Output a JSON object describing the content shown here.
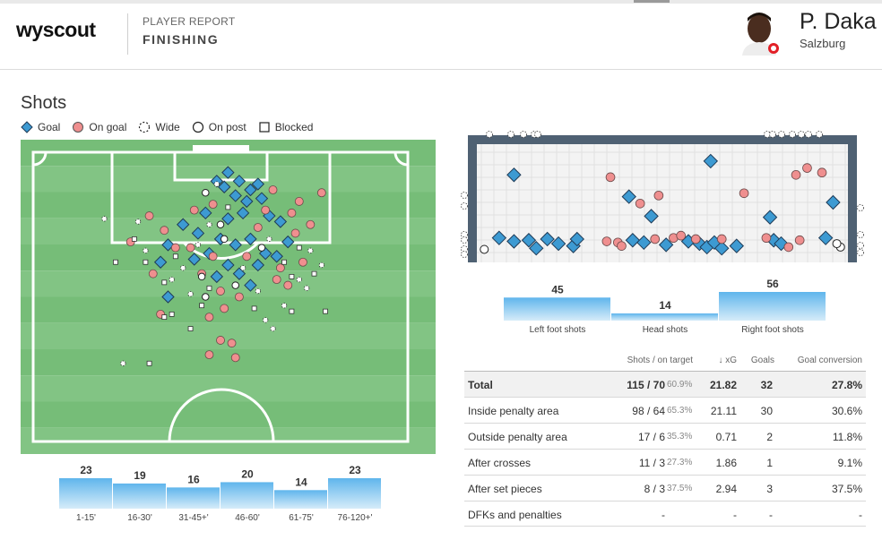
{
  "header": {
    "logo": "wyscout",
    "kicker": "PLAYER REPORT",
    "title": "FINISHING",
    "player_name": "P. Daka",
    "team": "Salzburg"
  },
  "shots": {
    "title": "Shots",
    "legend": [
      {
        "key": "goal",
        "label": "Goal"
      },
      {
        "key": "on_goal",
        "label": "On goal"
      },
      {
        "key": "wide",
        "label": "Wide"
      },
      {
        "key": "on_post",
        "label": "On post"
      },
      {
        "key": "blocked",
        "label": "Blocked"
      }
    ]
  },
  "colors": {
    "pitch_dark": "#76bd78",
    "pitch_light": "#82c484",
    "goal_marker": "#3d9ad2",
    "on_goal_marker": "#ef8f8f",
    "marker_stroke": "#1f3b57",
    "goal_frame": "#4f6173",
    "bar_top": "#5fb5ec",
    "bar_bottom": "#d6ecf9"
  },
  "chart_data": [
    {
      "type": "bar",
      "name": "shots_by_period",
      "categories": [
        "1-15'",
        "16-30'",
        "31-45+'",
        "46-60'",
        "61-75'",
        "76-120+'"
      ],
      "values": [
        23,
        19,
        16,
        20,
        14,
        23
      ]
    },
    {
      "type": "bar",
      "name": "shots_by_body_part",
      "categories": [
        "Left foot shots",
        "Head shots",
        "Right foot shots"
      ],
      "values": [
        45,
        14,
        56
      ]
    },
    {
      "type": "table",
      "name": "finishing_table",
      "columns": [
        "",
        "Shots / on target",
        "↓ xG",
        "Goals",
        "Goal conversion"
      ],
      "rows": [
        {
          "label": "Total",
          "shots": "115 / 70",
          "pct": "60.9%",
          "xg": "21.82",
          "goals": "32",
          "conv": "27.8%"
        },
        {
          "label": "Inside penalty area",
          "shots": "98 / 64",
          "pct": "65.3%",
          "xg": "21.11",
          "goals": "30",
          "conv": "30.6%"
        },
        {
          "label": "Outside penalty area",
          "shots": "17 / 6",
          "pct": "35.3%",
          "xg": "0.71",
          "goals": "2",
          "conv": "11.8%"
        },
        {
          "label": "After crosses",
          "shots": "11 / 3",
          "pct": "27.3%",
          "xg": "1.86",
          "goals": "1",
          "conv": "9.1%"
        },
        {
          "label": "After set pieces",
          "shots": "8 / 3",
          "pct": "37.5%",
          "xg": "2.94",
          "goals": "3",
          "conv": "37.5%"
        },
        {
          "label": "DFKs and penalties",
          "shots": "-",
          "pct": "",
          "xg": "-",
          "goals": "-",
          "conv": "-"
        }
      ]
    },
    {
      "type": "scatter",
      "name": "shot_locations_pitch",
      "x_range": [
        0,
        100
      ],
      "y_range": [
        0,
        100
      ],
      "points": [
        {
          "x": 52,
          "y": 7,
          "r": "goal"
        },
        {
          "x": 55,
          "y": 10,
          "r": "goal"
        },
        {
          "x": 58,
          "y": 13,
          "r": "goal"
        },
        {
          "x": 51,
          "y": 12,
          "r": "goal"
        },
        {
          "x": 60,
          "y": 11,
          "r": "goal"
        },
        {
          "x": 57,
          "y": 17,
          "r": "goal"
        },
        {
          "x": 54,
          "y": 15,
          "r": "goal"
        },
        {
          "x": 61,
          "y": 16,
          "r": "goal"
        },
        {
          "x": 49,
          "y": 10,
          "r": "goal"
        },
        {
          "x": 56,
          "y": 21,
          "r": "goal"
        },
        {
          "x": 52,
          "y": 23,
          "r": "goal"
        },
        {
          "x": 63,
          "y": 22,
          "r": "goal"
        },
        {
          "x": 46,
          "y": 21,
          "r": "goal"
        },
        {
          "x": 50,
          "y": 30,
          "r": "goal"
        },
        {
          "x": 44,
          "y": 28,
          "r": "goal"
        },
        {
          "x": 58,
          "y": 30,
          "r": "goal"
        },
        {
          "x": 54,
          "y": 32,
          "r": "goal"
        },
        {
          "x": 66,
          "y": 24,
          "r": "goal"
        },
        {
          "x": 40,
          "y": 25,
          "r": "goal"
        },
        {
          "x": 62,
          "y": 35,
          "r": "goal"
        },
        {
          "x": 47,
          "y": 35,
          "r": "goal"
        },
        {
          "x": 52,
          "y": 39,
          "r": "goal"
        },
        {
          "x": 36,
          "y": 32,
          "r": "goal"
        },
        {
          "x": 68,
          "y": 31,
          "r": "goal"
        },
        {
          "x": 55,
          "y": 42,
          "r": "goal"
        },
        {
          "x": 49,
          "y": 43,
          "r": "goal"
        },
        {
          "x": 43,
          "y": 37,
          "r": "goal"
        },
        {
          "x": 60,
          "y": 39,
          "r": "goal"
        },
        {
          "x": 65,
          "y": 36,
          "r": "goal"
        },
        {
          "x": 34,
          "y": 38,
          "r": "goal"
        },
        {
          "x": 58,
          "y": 46,
          "r": "goal"
        },
        {
          "x": 36,
          "y": 50,
          "r": "goal"
        },
        {
          "x": 48,
          "y": 18,
          "r": "on_goal"
        },
        {
          "x": 43,
          "y": 20,
          "r": "on_goal"
        },
        {
          "x": 62,
          "y": 20,
          "r": "on_goal"
        },
        {
          "x": 69,
          "y": 21,
          "r": "on_goal"
        },
        {
          "x": 74,
          "y": 25,
          "r": "on_goal"
        },
        {
          "x": 70,
          "y": 28,
          "r": "on_goal"
        },
        {
          "x": 35,
          "y": 27,
          "r": "on_goal"
        },
        {
          "x": 38,
          "y": 33,
          "r": "on_goal"
        },
        {
          "x": 42,
          "y": 33,
          "r": "on_goal"
        },
        {
          "x": 48,
          "y": 36,
          "r": "on_goal"
        },
        {
          "x": 57,
          "y": 36,
          "r": "on_goal"
        },
        {
          "x": 66,
          "y": 40,
          "r": "on_goal"
        },
        {
          "x": 72,
          "y": 38,
          "r": "on_goal"
        },
        {
          "x": 65,
          "y": 44,
          "r": "on_goal"
        },
        {
          "x": 55,
          "y": 50,
          "r": "on_goal"
        },
        {
          "x": 50,
          "y": 48,
          "r": "on_goal"
        },
        {
          "x": 45,
          "y": 42,
          "r": "on_goal"
        },
        {
          "x": 31,
          "y": 22,
          "r": "on_goal"
        },
        {
          "x": 26,
          "y": 31,
          "r": "on_goal"
        },
        {
          "x": 60,
          "y": 26,
          "r": "on_goal"
        },
        {
          "x": 77,
          "y": 14,
          "r": "on_goal"
        },
        {
          "x": 64,
          "y": 13,
          "r": "on_goal"
        },
        {
          "x": 71,
          "y": 17,
          "r": "on_goal"
        },
        {
          "x": 32,
          "y": 42,
          "r": "on_goal"
        },
        {
          "x": 68,
          "y": 46,
          "r": "on_goal"
        },
        {
          "x": 51,
          "y": 54,
          "r": "on_goal"
        },
        {
          "x": 47,
          "y": 57,
          "r": "on_goal"
        },
        {
          "x": 34,
          "y": 56,
          "r": "on_goal"
        },
        {
          "x": 50,
          "y": 65,
          "r": "on_goal"
        },
        {
          "x": 53,
          "y": 66,
          "r": "on_goal"
        },
        {
          "x": 47,
          "y": 70,
          "r": "on_goal"
        },
        {
          "x": 54,
          "y": 71,
          "r": "on_goal"
        },
        {
          "x": 49,
          "y": 11,
          "r": "wide"
        },
        {
          "x": 47,
          "y": 25,
          "r": "wide"
        },
        {
          "x": 63,
          "y": 30,
          "r": "wide"
        },
        {
          "x": 44,
          "y": 32,
          "r": "wide"
        },
        {
          "x": 74,
          "y": 34,
          "r": "wide"
        },
        {
          "x": 40,
          "y": 40,
          "r": "wide"
        },
        {
          "x": 71,
          "y": 44,
          "r": "wide"
        },
        {
          "x": 56,
          "y": 40,
          "r": "wide"
        },
        {
          "x": 60,
          "y": 48,
          "r": "wide"
        },
        {
          "x": 19,
          "y": 23,
          "r": "wide"
        },
        {
          "x": 28,
          "y": 24,
          "r": "wide"
        },
        {
          "x": 30,
          "y": 34,
          "r": "wide"
        },
        {
          "x": 67,
          "y": 53,
          "r": "wide"
        },
        {
          "x": 62,
          "y": 58,
          "r": "wide"
        },
        {
          "x": 64,
          "y": 61,
          "r": "wide"
        },
        {
          "x": 77,
          "y": 39,
          "r": "wide"
        },
        {
          "x": 24,
          "y": 73,
          "r": "wide"
        },
        {
          "x": 42,
          "y": 49,
          "r": "wide"
        },
        {
          "x": 37,
          "y": 44,
          "r": "wide"
        },
        {
          "x": 73,
          "y": 47,
          "r": "wide"
        },
        {
          "x": 46,
          "y": 14,
          "r": "on_post"
        },
        {
          "x": 51,
          "y": 30,
          "r": "on_post"
        },
        {
          "x": 45,
          "y": 43,
          "r": "on_post"
        },
        {
          "x": 54,
          "y": 46,
          "r": "on_post"
        },
        {
          "x": 61,
          "y": 33,
          "r": "on_post"
        },
        {
          "x": 46,
          "y": 50,
          "r": "on_post"
        },
        {
          "x": 50,
          "y": 25,
          "r": "on_post"
        },
        {
          "x": 27,
          "y": 30,
          "r": "blocked"
        },
        {
          "x": 30,
          "y": 38,
          "r": "blocked"
        },
        {
          "x": 35,
          "y": 45,
          "r": "blocked"
        },
        {
          "x": 52,
          "y": 19,
          "r": "blocked"
        },
        {
          "x": 67,
          "y": 38,
          "r": "blocked"
        },
        {
          "x": 71,
          "y": 33,
          "r": "blocked"
        },
        {
          "x": 69,
          "y": 43,
          "r": "blocked"
        },
        {
          "x": 75,
          "y": 42,
          "r": "blocked"
        },
        {
          "x": 38,
          "y": 36,
          "r": "blocked"
        },
        {
          "x": 45,
          "y": 53,
          "r": "blocked"
        },
        {
          "x": 37,
          "y": 56,
          "r": "blocked"
        },
        {
          "x": 69,
          "y": 55,
          "r": "blocked"
        },
        {
          "x": 31,
          "y": 73,
          "r": "blocked"
        },
        {
          "x": 35,
          "y": 57,
          "r": "blocked"
        },
        {
          "x": 78,
          "y": 55,
          "r": "blocked"
        },
        {
          "x": 22,
          "y": 38,
          "r": "blocked"
        },
        {
          "x": 42,
          "y": 61,
          "r": "blocked"
        },
        {
          "x": 59,
          "y": 54,
          "r": "blocked"
        },
        {
          "x": 47,
          "y": 47,
          "r": "blocked"
        }
      ]
    },
    {
      "type": "scatter",
      "name": "shot_placement_goal",
      "x_range": [
        0,
        100
      ],
      "y_range": [
        0,
        100
      ],
      "points": [
        {
          "x": 63,
          "y": 86,
          "r": "goal"
        },
        {
          "x": 10,
          "y": 16,
          "r": "goal"
        },
        {
          "x": 14,
          "y": 17,
          "r": "goal"
        },
        {
          "x": 19,
          "y": 18,
          "r": "goal"
        },
        {
          "x": 22,
          "y": 14,
          "r": "goal"
        },
        {
          "x": 16,
          "y": 10,
          "r": "goal"
        },
        {
          "x": 26,
          "y": 12,
          "r": "goal"
        },
        {
          "x": 27,
          "y": 18,
          "r": "goal"
        },
        {
          "x": 42,
          "y": 17,
          "r": "goal"
        },
        {
          "x": 45,
          "y": 15,
          "r": "goal"
        },
        {
          "x": 47,
          "y": 38,
          "r": "goal"
        },
        {
          "x": 41,
          "y": 55,
          "r": "goal"
        },
        {
          "x": 60,
          "y": 14,
          "r": "goal"
        },
        {
          "x": 62,
          "y": 11,
          "r": "goal"
        },
        {
          "x": 64,
          "y": 15,
          "r": "goal"
        },
        {
          "x": 66,
          "y": 10,
          "r": "goal"
        },
        {
          "x": 57,
          "y": 16,
          "r": "goal"
        },
        {
          "x": 79,
          "y": 37,
          "r": "goal"
        },
        {
          "x": 80,
          "y": 17,
          "r": "goal"
        },
        {
          "x": 82,
          "y": 14,
          "r": "goal"
        },
        {
          "x": 94,
          "y": 19,
          "r": "goal"
        },
        {
          "x": 96,
          "y": 50,
          "r": "goal"
        },
        {
          "x": 10,
          "y": 74,
          "r": "goal"
        },
        {
          "x": 6,
          "y": 19,
          "r": "goal"
        },
        {
          "x": 51,
          "y": 13,
          "r": "goal"
        },
        {
          "x": 70,
          "y": 12,
          "r": "goal"
        },
        {
          "x": 36,
          "y": 72,
          "r": "on_goal"
        },
        {
          "x": 38,
          "y": 15,
          "r": "on_goal"
        },
        {
          "x": 39,
          "y": 12,
          "r": "on_goal"
        },
        {
          "x": 44,
          "y": 49,
          "r": "on_goal"
        },
        {
          "x": 49,
          "y": 56,
          "r": "on_goal"
        },
        {
          "x": 48,
          "y": 18,
          "r": "on_goal"
        },
        {
          "x": 53,
          "y": 19,
          "r": "on_goal"
        },
        {
          "x": 55,
          "y": 21,
          "r": "on_goal"
        },
        {
          "x": 59,
          "y": 18,
          "r": "on_goal"
        },
        {
          "x": 66,
          "y": 18,
          "r": "on_goal"
        },
        {
          "x": 72,
          "y": 58,
          "r": "on_goal"
        },
        {
          "x": 78,
          "y": 19,
          "r": "on_goal"
        },
        {
          "x": 84,
          "y": 11,
          "r": "on_goal"
        },
        {
          "x": 86,
          "y": 74,
          "r": "on_goal"
        },
        {
          "x": 89,
          "y": 80,
          "r": "on_goal"
        },
        {
          "x": 93,
          "y": 76,
          "r": "on_goal"
        },
        {
          "x": 35,
          "y": 16,
          "r": "on_goal"
        },
        {
          "x": 87,
          "y": 17,
          "r": "on_goal"
        },
        {
          "x": 2,
          "y": 9,
          "r": "on_post"
        },
        {
          "x": 98,
          "y": 11,
          "r": "on_post"
        },
        {
          "x": 97,
          "y": 14,
          "r": "on_post"
        }
      ]
    }
  ]
}
